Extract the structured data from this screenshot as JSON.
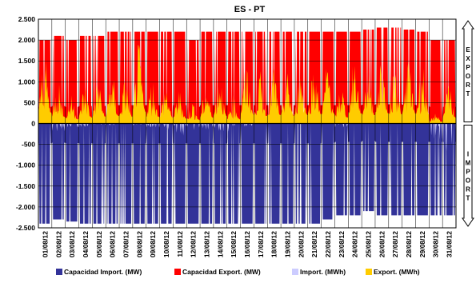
{
  "chart_data": {
    "type": "area",
    "title": "ES - PT",
    "xlabel": "",
    "ylabel": "",
    "ylim": [
      -2500,
      2500
    ],
    "y_ticks": [
      "2.500",
      "2.000",
      "1.500",
      "1.000",
      "500",
      "0",
      "-500",
      "-1.000",
      "-1.500",
      "-2.000",
      "-2.500"
    ],
    "x_categories": [
      "01/08/12",
      "02/08/12",
      "03/08/12",
      "04/08/12",
      "05/08/12",
      "06/08/12",
      "07/08/12",
      "08/08/12",
      "09/08/12",
      "10/08/12",
      "11/08/12",
      "12/08/12",
      "13/08/12",
      "14/08/12",
      "15/08/12",
      "16/08/12",
      "17/08/12",
      "18/08/12",
      "19/08/12",
      "20/08/12",
      "21/08/12",
      "22/08/12",
      "23/08/12",
      "24/08/12",
      "25/08/12",
      "26/08/12",
      "27/08/12",
      "28/08/12",
      "29/08/12",
      "30/08/12",
      "31/08/12"
    ],
    "grid": true,
    "legend_position": "bottom",
    "side_labels": {
      "top": "EXPORT",
      "bottom": "IMPORT"
    },
    "series": [
      {
        "name": "Capacidad Import. (MW)",
        "color": "#333399",
        "daily_values": [
          -2400,
          -2300,
          -2350,
          -2400,
          -2400,
          -2400,
          -2400,
          -2400,
          -2400,
          -2400,
          -2400,
          -2400,
          -2400,
          -2400,
          -2400,
          -2400,
          -2400,
          -2400,
          -2400,
          -2400,
          -2400,
          -2300,
          -2200,
          -2200,
          -2100,
          -2200,
          -2200,
          -2200,
          -2200,
          -2200,
          -2200
        ]
      },
      {
        "name": "Capacidad Export. (MW)",
        "color": "#ff0000",
        "daily_values": [
          2000,
          2100,
          2000,
          2100,
          2100,
          2200,
          2200,
          2200,
          2200,
          2200,
          2200,
          2000,
          2200,
          2200,
          2200,
          2200,
          2200,
          2200,
          2200,
          2200,
          2200,
          2200,
          2200,
          2200,
          2250,
          2300,
          2300,
          2250,
          2200,
          2000,
          2000
        ]
      },
      {
        "name": "Import. (MWh)",
        "color": "#ccccff",
        "daily_values": [
          0,
          -200,
          -100,
          -100,
          -50,
          -50,
          0,
          -50,
          -100,
          -150,
          -300,
          -250,
          -150,
          -200,
          -400,
          -100,
          0,
          0,
          0,
          0,
          0,
          0,
          -100,
          0,
          0,
          0,
          0,
          0,
          0,
          -500,
          -900
        ]
      },
      {
        "name": "Export. (MWh)",
        "color": "#ffcc00",
        "daily_values": [
          1300,
          800,
          500,
          700,
          800,
          900,
          800,
          1400,
          800,
          700,
          600,
          400,
          700,
          900,
          500,
          1100,
          900,
          1000,
          900,
          1000,
          1100,
          1100,
          700,
          1200,
          1000,
          1200,
          1100,
          1200,
          1100,
          200,
          700
        ]
      }
    ]
  }
}
